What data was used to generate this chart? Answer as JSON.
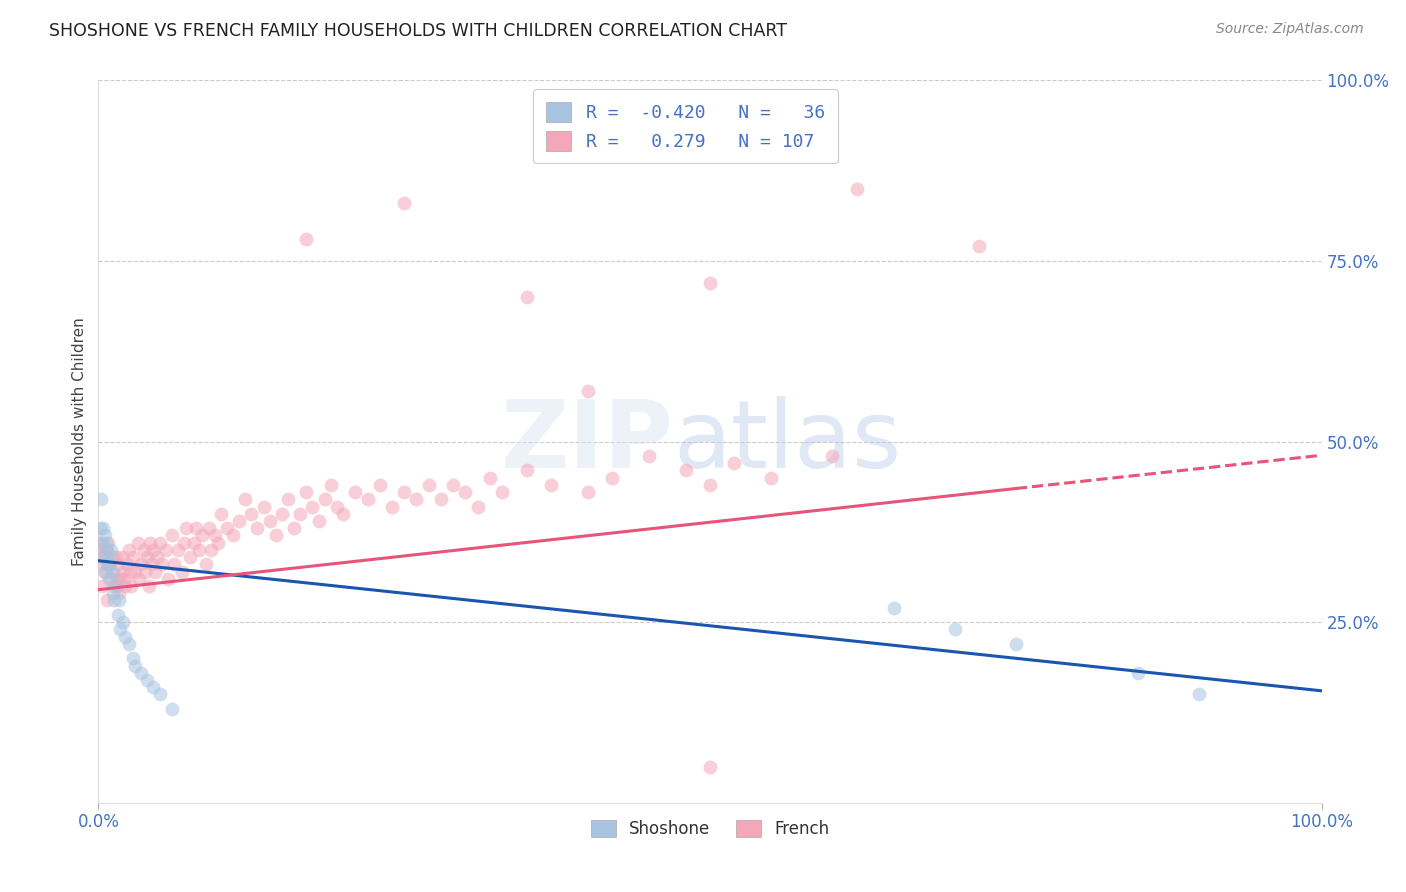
{
  "title": "SHOSHONE VS FRENCH FAMILY HOUSEHOLDS WITH CHILDREN CORRELATION CHART",
  "source_text": "Source: ZipAtlas.com",
  "ylabel": "Family Households with Children",
  "xlim": [
    0.0,
    1.0
  ],
  "ylim": [
    0.0,
    1.0
  ],
  "xtick_labels": [
    "0.0%",
    "100.0%"
  ],
  "ytick_labels_right": [
    "25.0%",
    "50.0%",
    "75.0%",
    "100.0%"
  ],
  "ytick_vals_right": [
    0.25,
    0.5,
    0.75,
    1.0
  ],
  "legend_R1": "-0.420",
  "legend_N1": "36",
  "legend_R2": "0.279",
  "legend_N2": "107",
  "color_shoshone": "#a8c4e0",
  "color_french": "#f4a7b9",
  "color_line_shoshone": "#1a56b0",
  "color_line_french": "#e8547a",
  "color_title": "#2c3e50",
  "color_source": "#888888",
  "color_grid": "#cccccc",
  "color_tick_label": "#4472c4",
  "background_color": "#ffffff",
  "shoshone_x": [
    0.001,
    0.002,
    0.003,
    0.003,
    0.004,
    0.005,
    0.005,
    0.006,
    0.007,
    0.007,
    0.008,
    0.009,
    0.009,
    0.01,
    0.011,
    0.012,
    0.013,
    0.015,
    0.016,
    0.017,
    0.018,
    0.02,
    0.022,
    0.025,
    0.028,
    0.03,
    0.035,
    0.04,
    0.045,
    0.05,
    0.06,
    0.65,
    0.7,
    0.75,
    0.85,
    0.9
  ],
  "shoshone_y": [
    0.38,
    0.42,
    0.36,
    0.34,
    0.38,
    0.37,
    0.32,
    0.36,
    0.33,
    0.35,
    0.34,
    0.31,
    0.33,
    0.35,
    0.32,
    0.29,
    0.28,
    0.3,
    0.26,
    0.28,
    0.24,
    0.25,
    0.23,
    0.22,
    0.2,
    0.19,
    0.18,
    0.17,
    0.16,
    0.15,
    0.13,
    0.27,
    0.24,
    0.22,
    0.18,
    0.15
  ],
  "french_x": [
    0.001,
    0.002,
    0.003,
    0.003,
    0.004,
    0.005,
    0.006,
    0.007,
    0.007,
    0.008,
    0.009,
    0.01,
    0.011,
    0.012,
    0.013,
    0.014,
    0.015,
    0.016,
    0.017,
    0.018,
    0.019,
    0.02,
    0.021,
    0.022,
    0.023,
    0.025,
    0.026,
    0.027,
    0.028,
    0.03,
    0.032,
    0.033,
    0.035,
    0.037,
    0.038,
    0.04,
    0.041,
    0.042,
    0.044,
    0.045,
    0.046,
    0.048,
    0.05,
    0.052,
    0.055,
    0.057,
    0.06,
    0.062,
    0.065,
    0.068,
    0.07,
    0.072,
    0.075,
    0.078,
    0.08,
    0.082,
    0.085,
    0.088,
    0.09,
    0.092,
    0.095,
    0.098,
    0.1,
    0.105,
    0.11,
    0.115,
    0.12,
    0.125,
    0.13,
    0.135,
    0.14,
    0.145,
    0.15,
    0.155,
    0.16,
    0.165,
    0.17,
    0.175,
    0.18,
    0.185,
    0.19,
    0.195,
    0.2,
    0.21,
    0.22,
    0.23,
    0.24,
    0.25,
    0.26,
    0.27,
    0.28,
    0.29,
    0.3,
    0.31,
    0.32,
    0.33,
    0.35,
    0.37,
    0.4,
    0.42,
    0.45,
    0.48,
    0.5,
    0.52,
    0.55,
    0.6,
    0.5
  ],
  "french_y": [
    0.35,
    0.36,
    0.3,
    0.33,
    0.34,
    0.32,
    0.35,
    0.28,
    0.34,
    0.36,
    0.33,
    0.31,
    0.34,
    0.32,
    0.3,
    0.34,
    0.31,
    0.33,
    0.29,
    0.31,
    0.34,
    0.32,
    0.31,
    0.3,
    0.33,
    0.35,
    0.32,
    0.3,
    0.34,
    0.32,
    0.36,
    0.31,
    0.33,
    0.35,
    0.32,
    0.34,
    0.3,
    0.36,
    0.33,
    0.35,
    0.32,
    0.34,
    0.36,
    0.33,
    0.35,
    0.31,
    0.37,
    0.33,
    0.35,
    0.32,
    0.36,
    0.38,
    0.34,
    0.36,
    0.38,
    0.35,
    0.37,
    0.33,
    0.38,
    0.35,
    0.37,
    0.36,
    0.4,
    0.38,
    0.37,
    0.39,
    0.42,
    0.4,
    0.38,
    0.41,
    0.39,
    0.37,
    0.4,
    0.42,
    0.38,
    0.4,
    0.43,
    0.41,
    0.39,
    0.42,
    0.44,
    0.41,
    0.4,
    0.43,
    0.42,
    0.44,
    0.41,
    0.43,
    0.42,
    0.44,
    0.42,
    0.44,
    0.43,
    0.41,
    0.45,
    0.43,
    0.46,
    0.44,
    0.43,
    0.45,
    0.48,
    0.46,
    0.44,
    0.47,
    0.45,
    0.48,
    0.05
  ],
  "french_outliers_x": [
    0.17,
    0.25,
    0.35,
    0.4,
    0.5,
    0.62,
    0.72
  ],
  "french_outliers_y": [
    0.78,
    0.83,
    0.7,
    0.57,
    0.72,
    0.85,
    0.77
  ],
  "line_shoshone_x0": 0.0,
  "line_shoshone_y0": 0.335,
  "line_shoshone_x1": 1.0,
  "line_shoshone_y1": 0.155,
  "line_french_solid_x0": 0.0,
  "line_french_solid_y0": 0.295,
  "line_french_solid_x1": 0.75,
  "line_french_solid_y1": 0.435,
  "line_french_dash_x0": 0.75,
  "line_french_dash_y0": 0.435,
  "line_french_dash_x1": 1.0,
  "line_french_dash_y1": 0.481,
  "dot_size": 100,
  "dot_alpha": 0.55,
  "line_width": 2.2
}
